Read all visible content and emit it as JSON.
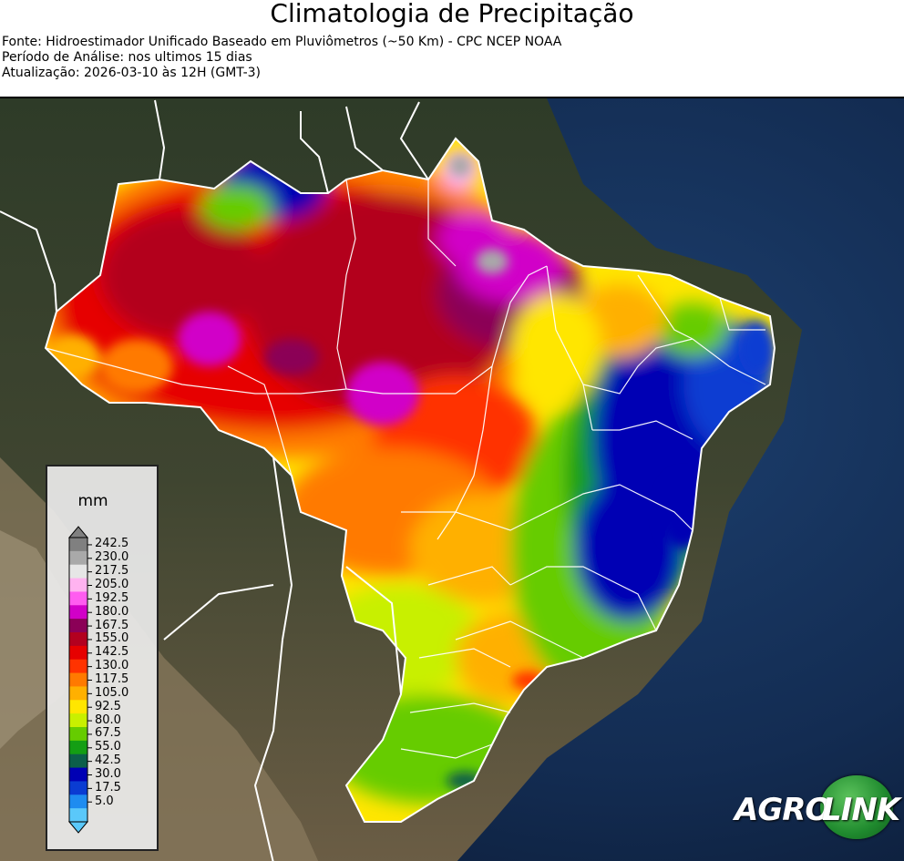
{
  "header": {
    "title": "Climatologia de Precipitação",
    "source_line": "Fonte: Hidroestimador Unificado Baseado em Pluviômetros (~50 Km) - CPC NCEP NOAA",
    "period_line": "Período de Análise: nos ultimos 15 dias",
    "update_line": "Atualização: 2026-03-10 às 12H (GMT-3)"
  },
  "legend": {
    "unit": "mm",
    "ticks": [
      "242.5",
      "230.0",
      "217.5",
      "205.0",
      "192.5",
      "180.0",
      "167.5",
      "155.0",
      "142.5",
      "130.0",
      "117.5",
      "105.0",
      "92.5",
      "80.0",
      "67.5",
      "55.0",
      "42.5",
      "30.0",
      "17.5",
      "5.0"
    ],
    "colors": [
      "#808080",
      "#a9a9a9",
      "#e6e6e6",
      "#ffb3f0",
      "#ff5cf0",
      "#d100c8",
      "#8b0057",
      "#b3001f",
      "#e60000",
      "#ff3300",
      "#ff7a00",
      "#ffb000",
      "#ffe600",
      "#c8f000",
      "#66cc00",
      "#149e14",
      "#0c5f4a",
      "#0000b4",
      "#0a3cd2",
      "#1e8cf0",
      "#5ac8fa"
    ]
  },
  "logo": {
    "text_left": "AGRO",
    "text_right": "LINK"
  }
}
